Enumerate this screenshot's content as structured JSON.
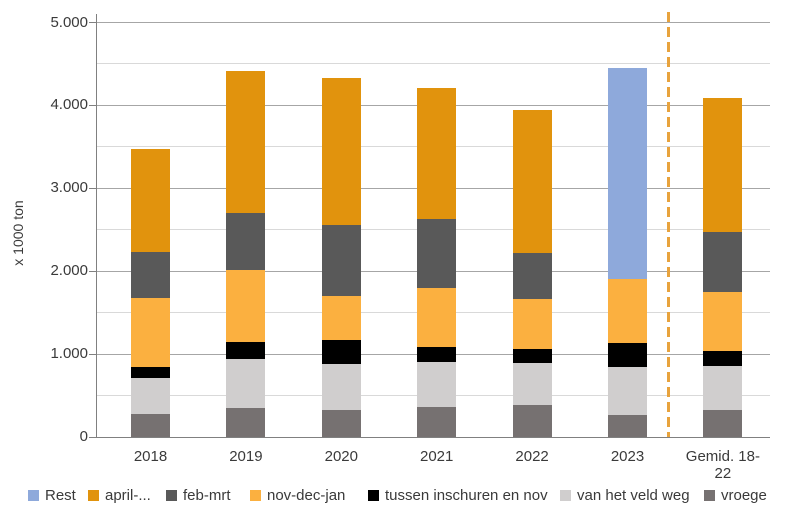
{
  "chart_data": {
    "type": "bar",
    "stacked": true,
    "title": "",
    "xlabel": "",
    "ylabel": "x 1000 ton",
    "units": "x 1000 ton",
    "ylim": [
      0,
      5000
    ],
    "ytick_interval": 1000,
    "minor_grid_interval": 500,
    "ytick_labels": [
      "0",
      "1.000",
      "2.000",
      "3.000",
      "4.000",
      "5.000"
    ],
    "grid": true,
    "legend_position": "bottom",
    "categories": [
      "2018",
      "2019",
      "2020",
      "2021",
      "2022",
      "2023",
      "Gemid. 18-22"
    ],
    "series": [
      {
        "name": "vroege",
        "color": "#767171",
        "values": [
          280,
          350,
          320,
          360,
          380,
          260,
          330
        ]
      },
      {
        "name": "van het veld weg",
        "color": "#d0cece",
        "values": [
          430,
          595,
          560,
          550,
          510,
          590,
          525
        ]
      },
      {
        "name": "tussen inschuren en nov",
        "color": "#000000",
        "values": [
          140,
          195,
          290,
          180,
          175,
          280,
          185
        ]
      },
      {
        "name": "nov-dec-jan",
        "color": "#fbb040",
        "values": [
          830,
          870,
          530,
          710,
          595,
          780,
          710
        ]
      },
      {
        "name": "feb-mrt",
        "color": "#595959",
        "values": [
          550,
          690,
          860,
          825,
          565,
          0,
          720
        ]
      },
      {
        "name": "april-...",
        "color": "#e1930d",
        "values": [
          1240,
          1720,
          1770,
          1585,
          1720,
          0,
          1620
        ]
      },
      {
        "name": "Rest",
        "color": "#8ea9db",
        "values": [
          0,
          0,
          0,
          0,
          0,
          2540,
          0
        ]
      }
    ],
    "bar_totals": [
      3470,
      4420,
      4330,
      4210,
      3945,
      4450,
      4090
    ],
    "legend_order": [
      "Rest",
      "april-...",
      "feb-mrt",
      "nov-dec-jan",
      "tussen inschuren en nov",
      "van het veld weg",
      "vroege"
    ],
    "separator": {
      "between_categories": [
        "2023",
        "Gemid. 18-22"
      ],
      "style": "dashed",
      "color": "#e8a33d",
      "meaning": "separates yearly values from the 2018-2022 average"
    },
    "colors": {
      "major_gridline": "#a6a6a6",
      "minor_gridline": "#d9d9d9",
      "axis": "#808080",
      "text": "#3a3a3a"
    }
  }
}
